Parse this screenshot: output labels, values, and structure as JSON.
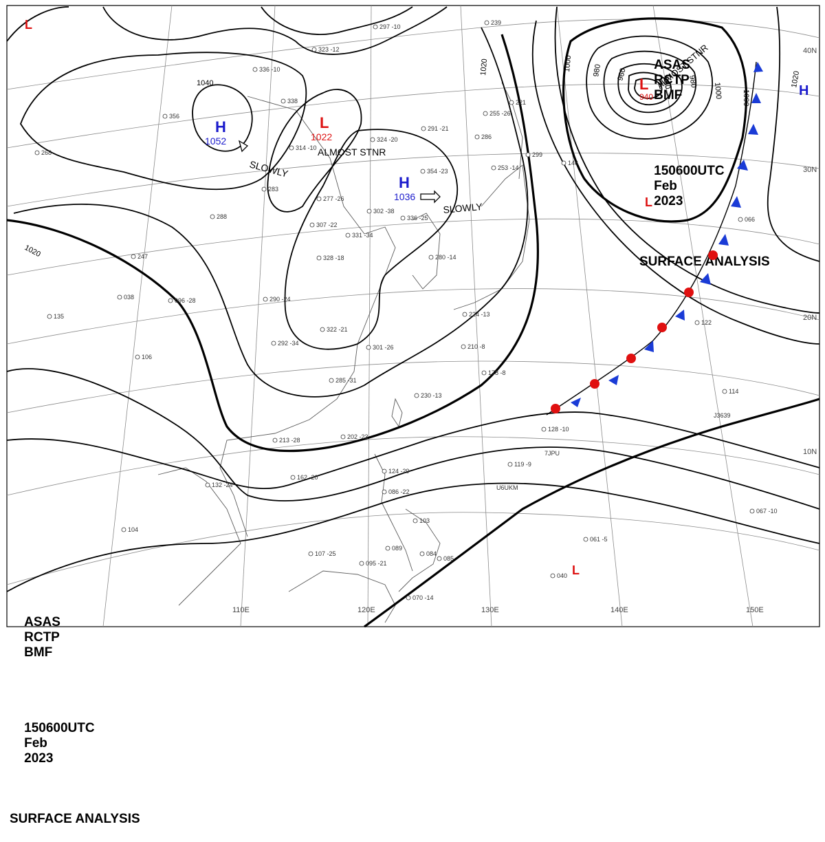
{
  "header": {
    "line1": [
      "ASAS",
      "RCTP",
      "BMF"
    ],
    "line2": [
      "150600UTC",
      "Feb",
      "2023"
    ],
    "line3": "SURFACE ANALYSIS"
  },
  "colors": {
    "high": "#1a1acc",
    "low": "#dd1111",
    "cold_front": "#1a3bd6",
    "warm_front": "#e01010",
    "isobar": "#000000"
  },
  "isobar_labels": [
    "1040",
    "1020",
    "1020",
    "1000",
    "1000",
    "980",
    "960",
    "960",
    "980",
    "1000",
    "1020"
  ],
  "pressure_centers": [
    {
      "type": "H",
      "value": "1052",
      "motion": "SLOWLY"
    },
    {
      "type": "L",
      "value": "1022",
      "motion": "ALMOST STNR"
    },
    {
      "type": "H",
      "value": "1036",
      "motion": "SLOWLY"
    },
    {
      "type": "L",
      "value": "940",
      "motion": "ALMOST STNR"
    }
  ],
  "lat_labels": [
    "40N",
    "30N",
    "20N",
    "10N"
  ],
  "lon_labels": [
    "110E",
    "120E",
    "130E",
    "140E",
    "150E"
  ],
  "stations": [
    "297 -10",
    "323 -12",
    "336 -10",
    "338",
    "356",
    "283",
    "268",
    "314 -10",
    "291 -21",
    "324 -20",
    "354 -23",
    "302 -38",
    "336 -25",
    "307 -22",
    "277 -26",
    "331 -34",
    "328 -18",
    "247",
    "288",
    "290 -24",
    "292 -34",
    "322 -21",
    "301 -26",
    "285 -31",
    "230 -13",
    "213 -28",
    "202 -23",
    "162 -20",
    "132 -24",
    "104",
    "107 -25",
    "095 -21",
    "084",
    "085",
    "070 -14",
    "089",
    "086 -22",
    "124 -29",
    "103",
    "119 -9",
    "128 -10",
    "210 -8",
    "178 -8",
    "253 -14",
    "255 -26",
    "286",
    "299",
    "221",
    "146",
    "122",
    "114",
    "066",
    "061 -5",
    "067 -10",
    "040",
    "135",
    "106",
    "096 -28",
    "038",
    "280 -14",
    "224 -13",
    "239"
  ],
  "ship_ids": [
    "7JPU",
    "U6UKM",
    "J3639"
  ]
}
